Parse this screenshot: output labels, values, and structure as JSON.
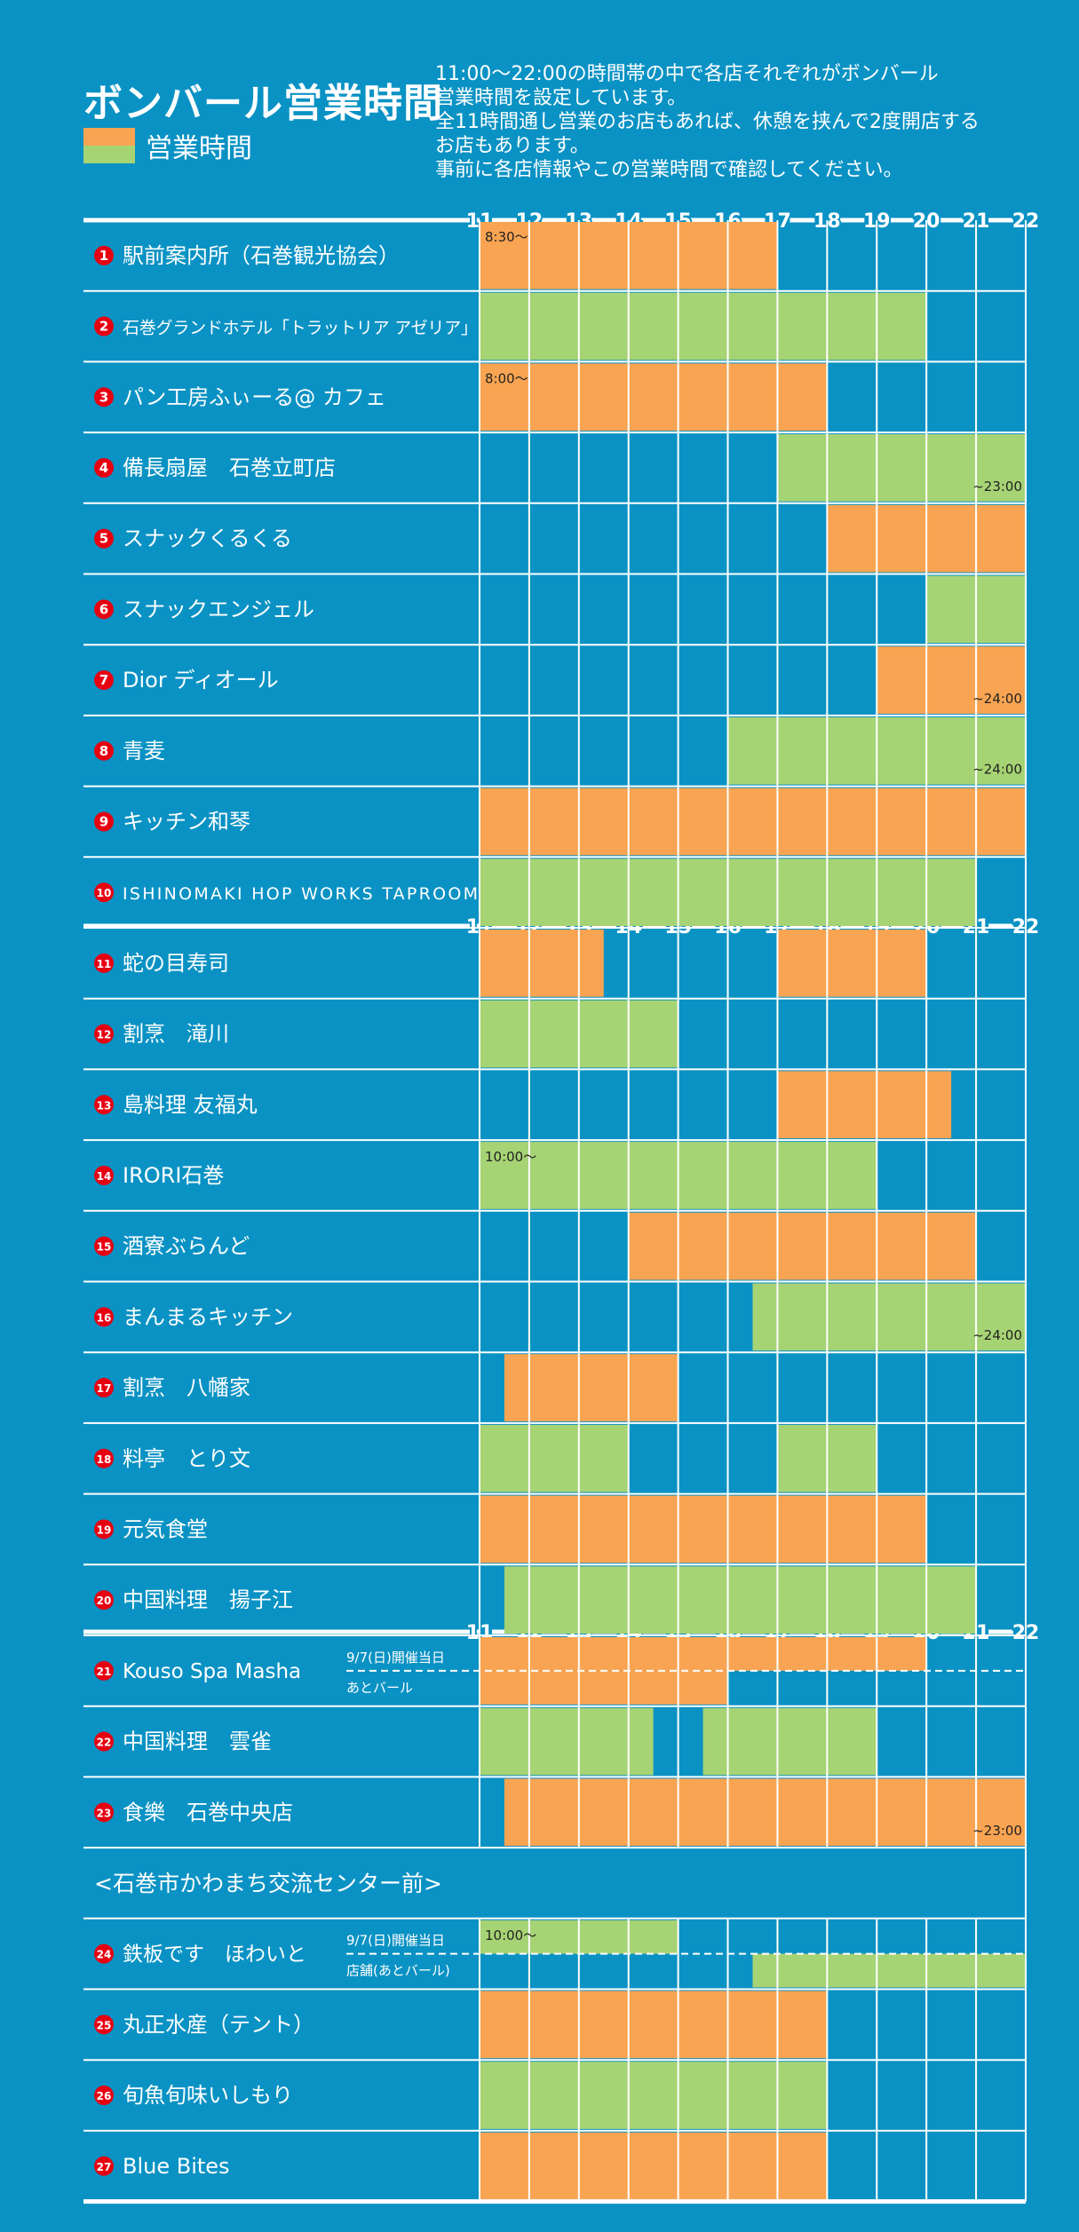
{
  "title": "ボンバール営業時間",
  "legend": {
    "label": "営業時間",
    "colors": [
      "#f9a452",
      "#a6d374"
    ]
  },
  "description": [
    "11:00〜22:00の時間帯の中で各店それぞれがボンバール",
    "営業時間を設定しています。",
    "全11時間通し営業のお店もあれば、休憩を挟んで2度開店する",
    "お店もあります。",
    "事前に各店情報やこの営業時間で確認してください。"
  ],
  "colors": {
    "background": "#0a92c4",
    "orange": "#f9a452",
    "green": "#a6d374",
    "line": "#ffffff",
    "badge": "#e60012"
  },
  "chart_data": {
    "type": "gantt",
    "x_unit": "hour",
    "xlim": [
      11,
      22
    ],
    "hour_labels": [
      "11",
      "12",
      "13",
      "14",
      "15",
      "16",
      "17",
      "18",
      "19",
      "20",
      "21",
      "22"
    ],
    "section_header": "<石巻市かわまち交流センター前>",
    "rows": [
      {
        "num": "1",
        "name": "駅前案内所（石巻観光協会）",
        "color": "orange",
        "segments": [
          [
            11,
            17
          ]
        ],
        "note_start": "8:30〜"
      },
      {
        "num": "2",
        "name": "石巻グランドホテル「トラットリア アゼリア」",
        "color": "green",
        "segments": [
          [
            11,
            20
          ]
        ],
        "small": true
      },
      {
        "num": "3",
        "name": "パン工房ふぃーる@ カフェ",
        "color": "orange",
        "segments": [
          [
            11,
            18
          ]
        ],
        "note_start": "8:00〜"
      },
      {
        "num": "4",
        "name": "備長扇屋　石巻立町店",
        "color": "green",
        "segments": [
          [
            17,
            22
          ]
        ],
        "note_end": "~23:00"
      },
      {
        "num": "5",
        "name": "スナックくるくる",
        "color": "orange",
        "segments": [
          [
            18,
            22
          ]
        ]
      },
      {
        "num": "6",
        "name": "スナックエンジェル",
        "color": "green",
        "segments": [
          [
            20,
            22
          ]
        ]
      },
      {
        "num": "7",
        "name": "Dior ディオール",
        "color": "orange",
        "segments": [
          [
            19,
            22
          ]
        ],
        "note_end": "~24:00"
      },
      {
        "num": "8",
        "name": "青麦",
        "color": "green",
        "segments": [
          [
            16,
            22
          ]
        ],
        "note_end": "~24:00"
      },
      {
        "num": "9",
        "name": "キッチン和琴",
        "color": "orange",
        "segments": [
          [
            11,
            22
          ]
        ]
      },
      {
        "num": "10",
        "name": "ISHINOMAKI HOP WORKS TAPROOM",
        "color": "green",
        "segments": [
          [
            11,
            21
          ]
        ],
        "small": true
      },
      {
        "num": "11",
        "name": "蛇の目寿司",
        "color": "orange",
        "segments": [
          [
            11,
            13.5
          ],
          [
            17,
            20
          ]
        ]
      },
      {
        "num": "12",
        "name": "割烹　滝川",
        "color": "green",
        "segments": [
          [
            11,
            15
          ]
        ]
      },
      {
        "num": "13",
        "name": "島料理 友福丸",
        "color": "orange",
        "segments": [
          [
            17,
            20.5
          ]
        ]
      },
      {
        "num": "14",
        "name": "IRORI石巻",
        "color": "green",
        "segments": [
          [
            11,
            19
          ]
        ],
        "note_start": "10:00〜"
      },
      {
        "num": "15",
        "name": "酒寮ぶらんど",
        "color": "orange",
        "segments": [
          [
            14,
            21
          ]
        ]
      },
      {
        "num": "16",
        "name": "まんまるキッチン",
        "color": "green",
        "segments": [
          [
            16.5,
            22
          ]
        ],
        "note_end": "~24:00"
      },
      {
        "num": "17",
        "name": "割烹　八幡家",
        "color": "orange",
        "segments": [
          [
            11.5,
            15
          ]
        ]
      },
      {
        "num": "18",
        "name": "料亭　とり文",
        "color": "green",
        "segments": [
          [
            11,
            14
          ],
          [
            17,
            19
          ]
        ]
      },
      {
        "num": "19",
        "name": "元気食堂",
        "color": "orange",
        "segments": [
          [
            11,
            20
          ]
        ]
      },
      {
        "num": "20",
        "name": "中国料理　揚子江",
        "color": "green",
        "segments": [
          [
            11.5,
            21
          ]
        ]
      },
      {
        "num": "21",
        "name": "Kouso Spa Masha",
        "color": "orange",
        "sub_top": "9/7(日)開催当日",
        "sub_bottom": "あとバール",
        "top_segments": [
          [
            11,
            20
          ]
        ],
        "bottom_segments": [
          [
            11,
            16
          ]
        ]
      },
      {
        "num": "22",
        "name": "中国料理　雲雀",
        "color": "green",
        "segments": [
          [
            11,
            14.5
          ],
          [
            15.5,
            19
          ]
        ]
      },
      {
        "num": "23",
        "name": "食樂　石巻中央店",
        "color": "orange",
        "segments": [
          [
            11.5,
            22
          ]
        ],
        "note_end": "~23:00"
      },
      {
        "num": "24",
        "name": "鉄板です　ほわいと",
        "color": "green",
        "sub_top": "9/7(日)開催当日",
        "sub_bottom": "店舗(あとバール)",
        "top_segments": [
          [
            11,
            15
          ]
        ],
        "bottom_segments": [
          [
            16.5,
            22
          ]
        ],
        "note_start": "10:00〜",
        "after_section": true
      },
      {
        "num": "25",
        "name": "丸正水産（テント）",
        "color": "orange",
        "segments": [
          [
            11,
            18
          ]
        ]
      },
      {
        "num": "26",
        "name": "旬魚旬味いしもり",
        "color": "green",
        "segments": [
          [
            11,
            18
          ]
        ]
      },
      {
        "num": "27",
        "name": "Blue Bites",
        "color": "orange",
        "segments": [
          [
            11,
            18
          ]
        ]
      }
    ]
  }
}
